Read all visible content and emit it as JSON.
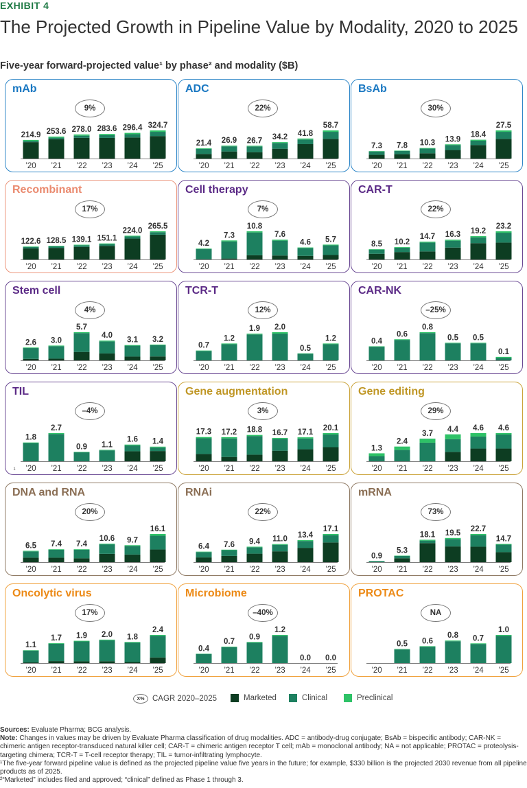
{
  "exhibit": "EXHIBIT 4",
  "title": "The Projected Growth in Pipeline Value by Modality, 2020 to 2025",
  "subtitle": "Five-year forward-projected value¹ by phase² and modality ($B)",
  "colors": {
    "marketed": "#0d3d22",
    "clinical": "#1d8060",
    "preclinical": "#2ec267"
  },
  "chart_data": [
    {
      "type": "bar",
      "stacked": true,
      "title": "mAb",
      "cagr": "9%",
      "title_color": "#1a78c2",
      "border_color": "#2f87c8",
      "categories": [
        "’20",
        "’21",
        "’22",
        "’23",
        "’24",
        "’25"
      ],
      "values": [
        214.9,
        253.6,
        278.0,
        283.6,
        296.4,
        324.7
      ],
      "labels": [
        "214.9",
        "253.6",
        "278.0",
        "283.6",
        "296.4",
        "324.7"
      ],
      "marketed_share": [
        0.88,
        0.88,
        0.86,
        0.84,
        0.82,
        0.8
      ],
      "preclinical_share": [
        0.05,
        0.05,
        0.05,
        0.05,
        0.05,
        0.05
      ]
    },
    {
      "type": "bar",
      "stacked": true,
      "title": "ADC",
      "cagr": "22%",
      "title_color": "#1a78c2",
      "border_color": "#2f87c8",
      "categories": [
        "’20",
        "’21",
        "’22",
        "’23",
        "’24",
        "’25"
      ],
      "values": [
        21.4,
        26.9,
        26.7,
        34.2,
        41.8,
        58.7
      ],
      "labels": [
        "21.4",
        "26.9",
        "26.7",
        "34.2",
        "41.8",
        "58.7"
      ],
      "marketed_share": [
        0.45,
        0.55,
        0.5,
        0.6,
        0.72,
        0.7
      ],
      "preclinical_share": [
        0.05,
        0.05,
        0.05,
        0.05,
        0.05,
        0.05
      ]
    },
    {
      "type": "bar",
      "stacked": true,
      "title": "BsAb",
      "cagr": "30%",
      "title_color": "#1a78c2",
      "border_color": "#2f87c8",
      "categories": [
        "’20",
        "’21",
        "’22",
        "’23",
        "’24",
        "’25"
      ],
      "values": [
        7.3,
        7.8,
        10.3,
        13.9,
        18.4,
        27.5
      ],
      "labels": [
        "7.3",
        "7.8",
        "10.3",
        "13.9",
        "18.4",
        "27.5"
      ],
      "marketed_share": [
        0.5,
        0.55,
        0.5,
        0.6,
        0.72,
        0.7
      ],
      "preclinical_share": [
        0.05,
        0.05,
        0.05,
        0.05,
        0.05,
        0.05
      ]
    },
    {
      "type": "bar",
      "stacked": true,
      "title": "Recombinant",
      "cagr": "17%",
      "title_color": "#ea8a6f",
      "border_color": "#ec967c",
      "categories": [
        "’20",
        "’21",
        "’22",
        "’23",
        "’24",
        "’25"
      ],
      "values": [
        122.6,
        128.5,
        139.1,
        151.1,
        224.0,
        265.5
      ],
      "labels": [
        "122.6",
        "128.5",
        "139.1",
        "151.1",
        "224.0",
        "265.5"
      ],
      "marketed_share": [
        0.85,
        0.85,
        0.85,
        0.85,
        0.88,
        0.88
      ],
      "preclinical_share": [
        0.04,
        0.04,
        0.04,
        0.04,
        0.03,
        0.03
      ]
    },
    {
      "type": "bar",
      "stacked": true,
      "title": "Cell therapy",
      "cagr": "7%",
      "title_color": "#5b2a86",
      "border_color": "#6b4a94",
      "categories": [
        "’20",
        "’21",
        "’22",
        "’23",
        "’24",
        "’25"
      ],
      "values": [
        4.2,
        7.3,
        10.8,
        7.6,
        4.6,
        5.7
      ],
      "labels": [
        "4.2",
        "7.3",
        "10.8",
        "7.6",
        "4.6",
        "5.7"
      ],
      "marketed_share": [
        0.02,
        0.05,
        0.15,
        0.2,
        0.3,
        0.3
      ],
      "preclinical_share": [
        0.05,
        0.05,
        0.04,
        0.05,
        0.05,
        0.05
      ]
    },
    {
      "type": "bar",
      "stacked": true,
      "title": "CAR-T",
      "cagr": "22%",
      "title_color": "#5b2a86",
      "border_color": "#6b4a94",
      "categories": [
        "’20",
        "’21",
        "’22",
        "’23",
        "’24",
        "’25"
      ],
      "values": [
        8.5,
        10.2,
        14.7,
        16.3,
        19.2,
        23.2
      ],
      "labels": [
        "8.5",
        "10.2",
        "14.7",
        "16.3",
        "19.2",
        "23.2"
      ],
      "marketed_share": [
        0.55,
        0.6,
        0.45,
        0.6,
        0.7,
        0.6
      ],
      "preclinical_share": [
        0.05,
        0.05,
        0.05,
        0.05,
        0.05,
        0.05
      ]
    },
    {
      "type": "bar",
      "stacked": true,
      "title": "Stem cell",
      "cagr": "4%",
      "title_color": "#5b2a86",
      "border_color": "#6b4a94",
      "categories": [
        "’20",
        "’21",
        "’22",
        "’23",
        "’24",
        "’25"
      ],
      "values": [
        2.6,
        3.0,
        5.7,
        4.0,
        3.1,
        3.2
      ],
      "labels": [
        "2.6",
        "3.0",
        "5.7",
        "4.0",
        "3.1",
        "3.2"
      ],
      "marketed_share": [
        0.12,
        0.12,
        0.3,
        0.35,
        0.25,
        0.25
      ],
      "preclinical_share": [
        0.04,
        0.04,
        0.03,
        0.04,
        0.04,
        0.04
      ]
    },
    {
      "type": "bar",
      "stacked": true,
      "title": "TCR-T",
      "cagr": "12%",
      "title_color": "#5b2a86",
      "border_color": "#6b4a94",
      "categories": [
        "’20",
        "’21",
        "’22",
        "’23",
        "’24",
        "’25"
      ],
      "values": [
        0.7,
        1.2,
        1.9,
        2.0,
        0.5,
        1.2
      ],
      "labels": [
        "0.7",
        "1.2",
        "1.9",
        "2.0",
        "0.5",
        "1.2"
      ],
      "marketed_share": [
        0,
        0,
        0,
        0,
        0,
        0
      ],
      "preclinical_share": [
        0.05,
        0.04,
        0.03,
        0.05,
        0.05,
        0.04
      ]
    },
    {
      "type": "bar",
      "stacked": true,
      "title": "CAR-NK",
      "cagr": "–25%",
      "title_color": "#5b2a86",
      "border_color": "#6b4a94",
      "categories": [
        "’20",
        "’21",
        "’22",
        "’23",
        "’24",
        "’25"
      ],
      "values": [
        0.4,
        0.6,
        0.8,
        0.5,
        0.5,
        0.1
      ],
      "labels": [
        "0.4",
        "0.6",
        "0.8",
        "0.5",
        "0.5",
        "0.1"
      ],
      "marketed_share": [
        0,
        0,
        0,
        0,
        0,
        0
      ],
      "preclinical_share": [
        0.03,
        0.03,
        0.03,
        0.03,
        0.03,
        0.3
      ]
    },
    {
      "type": "bar",
      "stacked": true,
      "title": "TIL",
      "cagr": "–4%",
      "title_color": "#5b2a86",
      "border_color": "#6b4a94",
      "categories": [
        "’20",
        "’21",
        "’22",
        "’23",
        "’24",
        "’25"
      ],
      "values": [
        1.8,
        2.7,
        0.9,
        1.1,
        1.6,
        1.4
      ],
      "labels": [
        "1.8",
        "2.7",
        "0.9",
        "1.1",
        "1.6",
        "1.4"
      ],
      "marketed_share": [
        0,
        0,
        0,
        0,
        0.6,
        0.7
      ],
      "preclinical_share": [
        0.03,
        0.03,
        0.05,
        0.05,
        0.05,
        0.05
      ]
    },
    {
      "type": "bar",
      "stacked": true,
      "title": "Gene augmentation",
      "cagr": "3%",
      "title_color": "#c09726",
      "border_color": "#cba43b",
      "categories": [
        "’20",
        "’21",
        "’22",
        "’23",
        "’24",
        "’25"
      ],
      "values": [
        17.3,
        17.2,
        18.8,
        16.7,
        17.1,
        20.1
      ],
      "labels": [
        "17.3",
        "17.2",
        "18.8",
        "16.7",
        "17.1",
        "20.1"
      ],
      "marketed_share": [
        0.3,
        0.18,
        0.25,
        0.45,
        0.5,
        0.5
      ],
      "preclinical_share": [
        0.05,
        0.05,
        0.04,
        0.04,
        0.05,
        0.05
      ]
    },
    {
      "type": "bar",
      "stacked": true,
      "title": "Gene editing",
      "cagr": "29%",
      "title_color": "#c09726",
      "border_color": "#cba43b",
      "categories": [
        "’20",
        "’21",
        "’22",
        "’23",
        "’24",
        "’25"
      ],
      "values": [
        1.3,
        2.4,
        3.7,
        4.4,
        4.6,
        4.6
      ],
      "labels": [
        "1.3",
        "2.4",
        "3.7",
        "4.4",
        "4.6",
        "4.6"
      ],
      "marketed_share": [
        0,
        0,
        0,
        0.35,
        0.45,
        0.45
      ],
      "preclinical_share": [
        0.35,
        0.22,
        0.18,
        0.18,
        0.12,
        0.05
      ]
    },
    {
      "type": "bar",
      "stacked": true,
      "title": "DNA and RNA",
      "cagr": "20%",
      "title_color": "#8a6e54",
      "border_color": "#8f7a64",
      "categories": [
        "’20",
        "’21",
        "’22",
        "’23",
        "’24",
        "’25"
      ],
      "values": [
        6.5,
        7.4,
        7.4,
        10.6,
        9.7,
        16.1
      ],
      "labels": [
        "6.5",
        "7.4",
        "7.4",
        "10.6",
        "9.7",
        "16.1"
      ],
      "marketed_share": [
        0.4,
        0.35,
        0.3,
        0.45,
        0.45,
        0.45
      ],
      "preclinical_share": [
        0.05,
        0.04,
        0.04,
        0.04,
        0.04,
        0.06
      ]
    },
    {
      "type": "bar",
      "stacked": true,
      "title": "RNAi",
      "cagr": "22%",
      "title_color": "#8a6e54",
      "border_color": "#8f7a64",
      "categories": [
        "’20",
        "’21",
        "’22",
        "’23",
        "’24",
        "’25"
      ],
      "values": [
        6.4,
        7.6,
        9.4,
        11.0,
        13.4,
        17.1
      ],
      "labels": [
        "6.4",
        "7.6",
        "9.4",
        "11.0",
        "13.4",
        "17.1"
      ],
      "marketed_share": [
        0.45,
        0.5,
        0.55,
        0.6,
        0.65,
        0.7
      ],
      "preclinical_share": [
        0.04,
        0.04,
        0.04,
        0.04,
        0.04,
        0.04
      ]
    },
    {
      "type": "bar",
      "stacked": true,
      "title": "mRNA",
      "cagr": "73%",
      "title_color": "#8a6e54",
      "border_color": "#8f7a64",
      "categories": [
        "’20",
        "’21",
        "’22",
        "’23",
        "’24",
        "’25"
      ],
      "values": [
        0.9,
        5.3,
        18.1,
        19.5,
        22.7,
        14.7
      ],
      "labels": [
        "0.9",
        "5.3",
        "18.1",
        "19.5",
        "22.7",
        "14.7"
      ],
      "marketed_share": [
        0,
        0.6,
        0.85,
        0.65,
        0.55,
        0.55
      ],
      "preclinical_share": [
        0.05,
        0.05,
        0.04,
        0.04,
        0.04,
        0.04
      ]
    },
    {
      "type": "bar",
      "stacked": true,
      "title": "Oncolytic virus",
      "cagr": "17%",
      "title_color": "#ec8a17",
      "border_color": "#f0a23e",
      "categories": [
        "’20",
        "’21",
        "’22",
        "’23",
        "’24",
        "’25"
      ],
      "values": [
        1.1,
        1.7,
        1.9,
        2.0,
        1.8,
        2.4
      ],
      "labels": [
        "1.1",
        "1.7",
        "1.9",
        "2.0",
        "1.8",
        "2.4"
      ],
      "marketed_share": [
        0.05,
        0.1,
        0.08,
        0.08,
        0.05,
        0.2
      ],
      "preclinical_share": [
        0.03,
        0.03,
        0.03,
        0.03,
        0.03,
        0.03
      ]
    },
    {
      "type": "bar",
      "stacked": true,
      "title": "Microbiome",
      "cagr": "–40%",
      "title_color": "#ec8a17",
      "border_color": "#f0a23e",
      "categories": [
        "’20",
        "’21",
        "’22",
        "’23",
        "’24",
        "’25"
      ],
      "values": [
        0.4,
        0.7,
        0.9,
        1.2,
        0.0,
        0.0
      ],
      "labels": [
        "0.4",
        "0.7",
        "0.9",
        "1.2",
        "0.0",
        "0.0"
      ],
      "marketed_share": [
        0,
        0,
        0,
        0,
        0,
        0
      ],
      "preclinical_share": [
        0.03,
        0.03,
        0.03,
        0.03,
        0,
        0
      ]
    },
    {
      "type": "bar",
      "stacked": true,
      "title": "PROTAC",
      "cagr": "NA",
      "title_color": "#ec8a17",
      "border_color": "#f0a23e",
      "categories": [
        "’20",
        "’21",
        "’22",
        "’23",
        "’24",
        "’25"
      ],
      "values": [
        0,
        0.5,
        0.6,
        0.8,
        0.7,
        1.0
      ],
      "labels": [
        "",
        "0.5",
        "0.6",
        "0.8",
        "0.7",
        "1.0"
      ],
      "marketed_share": [
        0,
        0,
        0,
        0,
        0,
        0
      ],
      "preclinical_share": [
        0,
        0.03,
        0.03,
        0.03,
        0.03,
        0.03
      ]
    }
  ],
  "til_footnote_mark": "1",
  "legend": {
    "cagr_badge": "X%",
    "cagr_label": "CAGR 2020–2025",
    "marketed": "Marketed",
    "clinical": "Clinical",
    "preclinical": "Preclinical"
  },
  "notes": {
    "sources_label": "Sources:",
    "sources_text": " Evaluate Pharma; BCG analysis.",
    "note_label": "Note:",
    "note_text": " Changes in values may be driven by Evaluate Pharma classification of drug modalities. ADC = antibody-drug conjugate; BsAb = bispecific antibody; CAR-NK = chimeric antigen receptor-transduced natural killer cell; CAR-T = chimeric antigen receptor T cell; mAb = monoclonal antibody; NA = not applicable; PROTAC = proteolysis-targeting chimera; TCR-T = T-cell receptor therapy; TIL = tumor-infiltrating lymphocyte.",
    "footnote1": "¹The five-year forward pipeline value is defined as the projected pipeline value five years in the future; for example, $330 billion is the projected 2030 revenue from all pipeline products as of 2025.",
    "footnote2": "²“Marketed” includes filed and approved; “clinical” defined as Phase 1 through 3."
  }
}
